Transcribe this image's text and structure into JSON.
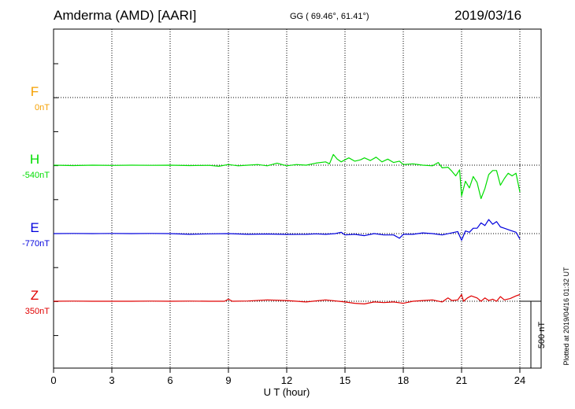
{
  "header": {
    "station": "Amderma (AMD)  [AARI]",
    "coords": "GG ( 69.46°,  61.41°)",
    "date": "2019/03/16"
  },
  "footer_note": "Plotted at 2019/04/16 01:32 UT",
  "chart_data": {
    "type": "line",
    "xlabel": "U T (hour)",
    "xlim": [
      0,
      24
    ],
    "xticks": [
      0,
      3,
      6,
      9,
      12,
      15,
      18,
      21,
      24
    ],
    "scale_bar": {
      "label": "500 nT",
      "value_nT": 500
    },
    "grid": true,
    "series": [
      {
        "name": "F",
        "base_label": "0nT",
        "color": "#f5a000",
        "points": []
      },
      {
        "name": "H",
        "base_label": "-540nT",
        "color": "#00dd00",
        "points": [
          [
            0,
            0
          ],
          [
            1,
            -3
          ],
          [
            2,
            0
          ],
          [
            3,
            -2
          ],
          [
            4,
            0
          ],
          [
            5,
            -1
          ],
          [
            6,
            0
          ],
          [
            7,
            -3
          ],
          [
            8,
            -1
          ],
          [
            8.5,
            -8
          ],
          [
            9,
            5
          ],
          [
            9.5,
            -5
          ],
          [
            10,
            0
          ],
          [
            10.5,
            5
          ],
          [
            11,
            -5
          ],
          [
            11.5,
            15
          ],
          [
            12,
            -5
          ],
          [
            12.5,
            5
          ],
          [
            13,
            0
          ],
          [
            13.5,
            15
          ],
          [
            14,
            25
          ],
          [
            14.2,
            10
          ],
          [
            14.4,
            80
          ],
          [
            14.6,
            45
          ],
          [
            14.8,
            25
          ],
          [
            15,
            40
          ],
          [
            15.2,
            55
          ],
          [
            15.5,
            30
          ],
          [
            15.8,
            40
          ],
          [
            16,
            55
          ],
          [
            16.3,
            35
          ],
          [
            16.6,
            60
          ],
          [
            16.9,
            25
          ],
          [
            17.2,
            45
          ],
          [
            17.5,
            20
          ],
          [
            17.8,
            30
          ],
          [
            18,
            5
          ],
          [
            18.5,
            10
          ],
          [
            19,
            0
          ],
          [
            19.5,
            -5
          ],
          [
            19.8,
            20
          ],
          [
            20,
            -20
          ],
          [
            20.3,
            -15
          ],
          [
            20.5,
            -45
          ],
          [
            20.7,
            -80
          ],
          [
            20.9,
            -35
          ],
          [
            21,
            -230
          ],
          [
            21.2,
            -120
          ],
          [
            21.4,
            -170
          ],
          [
            21.6,
            -85
          ],
          [
            21.8,
            -130
          ],
          [
            22,
            -250
          ],
          [
            22.2,
            -175
          ],
          [
            22.4,
            -70
          ],
          [
            22.6,
            -40
          ],
          [
            22.8,
            -40
          ],
          [
            23,
            -150
          ],
          [
            23.2,
            -100
          ],
          [
            23.4,
            -60
          ],
          [
            23.6,
            -80
          ],
          [
            23.8,
            -60
          ],
          [
            24,
            -200
          ]
        ]
      },
      {
        "name": "E",
        "base_label": "-770nT",
        "color": "#0000dd",
        "points": [
          [
            0,
            0
          ],
          [
            1,
            1
          ],
          [
            2,
            0
          ],
          [
            3,
            1
          ],
          [
            4,
            0
          ],
          [
            5,
            1
          ],
          [
            6,
            0
          ],
          [
            7,
            -5
          ],
          [
            8,
            -2
          ],
          [
            9,
            0
          ],
          [
            10,
            -5
          ],
          [
            11,
            -3
          ],
          [
            12,
            -6
          ],
          [
            13,
            -5
          ],
          [
            13.5,
            -2
          ],
          [
            14,
            -5
          ],
          [
            14.5,
            0
          ],
          [
            14.8,
            10
          ],
          [
            15,
            -10
          ],
          [
            15.5,
            -5
          ],
          [
            16,
            -15
          ],
          [
            16.5,
            0
          ],
          [
            17,
            -10
          ],
          [
            17.5,
            -10
          ],
          [
            17.8,
            -35
          ],
          [
            18,
            -5
          ],
          [
            18.5,
            -5
          ],
          [
            19,
            5
          ],
          [
            19.5,
            0
          ],
          [
            20,
            -10
          ],
          [
            20.5,
            5
          ],
          [
            20.8,
            15
          ],
          [
            21,
            -50
          ],
          [
            21.2,
            20
          ],
          [
            21.4,
            10
          ],
          [
            21.6,
            40
          ],
          [
            21.8,
            40
          ],
          [
            22,
            80
          ],
          [
            22.2,
            60
          ],
          [
            22.4,
            105
          ],
          [
            22.6,
            70
          ],
          [
            22.8,
            90
          ],
          [
            23,
            50
          ],
          [
            23.2,
            40
          ],
          [
            23.5,
            25
          ],
          [
            23.8,
            10
          ],
          [
            24,
            -40
          ]
        ]
      },
      {
        "name": "Z",
        "base_label": "350nT",
        "color": "#e00000",
        "points": [
          [
            0,
            0
          ],
          [
            1,
            1
          ],
          [
            2,
            0
          ],
          [
            3,
            0
          ],
          [
            4,
            0
          ],
          [
            5,
            1
          ],
          [
            6,
            0
          ],
          [
            7,
            1
          ],
          [
            8,
            0
          ],
          [
            8.8,
            0
          ],
          [
            9,
            15
          ],
          [
            9.2,
            0
          ],
          [
            10,
            2
          ],
          [
            11,
            10
          ],
          [
            12,
            5
          ],
          [
            13,
            -5
          ],
          [
            14,
            10
          ],
          [
            15,
            -5
          ],
          [
            15.5,
            -15
          ],
          [
            16,
            -20
          ],
          [
            16.5,
            -5
          ],
          [
            17,
            -10
          ],
          [
            17.5,
            -5
          ],
          [
            18,
            -15
          ],
          [
            18.5,
            0
          ],
          [
            19,
            5
          ],
          [
            19.5,
            10
          ],
          [
            20,
            -5
          ],
          [
            20.3,
            25
          ],
          [
            20.5,
            5
          ],
          [
            20.8,
            10
          ],
          [
            21,
            50
          ],
          [
            21.1,
            0
          ],
          [
            21.3,
            25
          ],
          [
            21.5,
            40
          ],
          [
            21.8,
            25
          ],
          [
            22,
            0
          ],
          [
            22.2,
            25
          ],
          [
            22.4,
            5
          ],
          [
            22.6,
            15
          ],
          [
            22.8,
            0
          ],
          [
            23,
            35
          ],
          [
            23.2,
            10
          ],
          [
            23.5,
            20
          ],
          [
            23.8,
            40
          ],
          [
            24,
            50
          ]
        ]
      }
    ]
  }
}
